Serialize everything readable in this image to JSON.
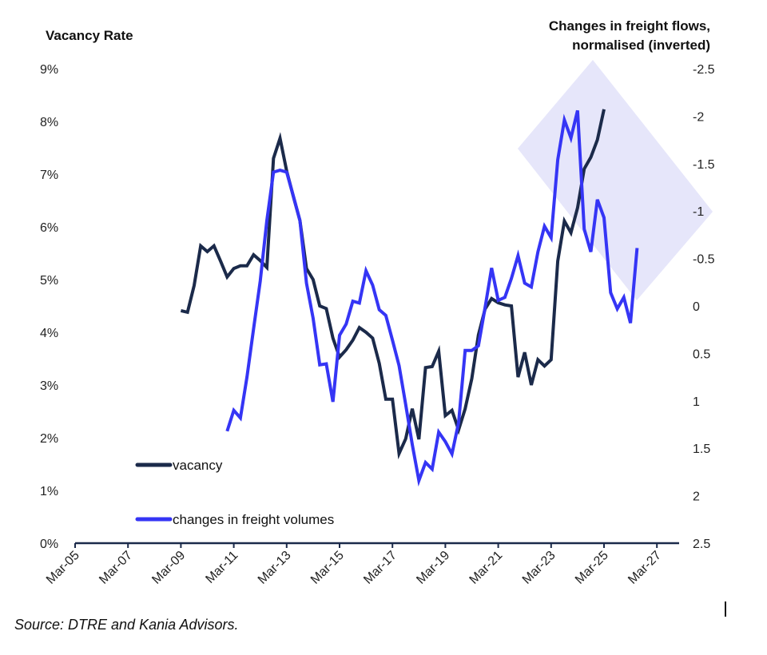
{
  "chart_data": {
    "type": "line",
    "title": "",
    "left_axis": {
      "label": "Vacancy Rate",
      "ticks": [
        "9%",
        "8%",
        "7%",
        "6%",
        "5%",
        "4%",
        "3%",
        "2%",
        "1%",
        "0%"
      ],
      "range": [
        0,
        9
      ]
    },
    "right_axis": {
      "label_line1": "Changes in freight flows,",
      "label_line2": "normalised (inverted)",
      "ticks": [
        "-2.5",
        "-2",
        "-1.5",
        "-1",
        "-0.5",
        "0",
        "0.5",
        "1",
        "1.5",
        "2",
        "2.5"
      ],
      "range": [
        -2.5,
        2.5
      ],
      "inverted": true
    },
    "x_axis": {
      "ticks": [
        "Mar-05",
        "Mar-07",
        "Mar-09",
        "Mar-11",
        "Mar-13",
        "Mar-15",
        "Mar-17",
        "Mar-19",
        "Mar-21",
        "Mar-23",
        "Mar-25",
        "Mar-27"
      ],
      "range": [
        2005.17,
        2028.0
      ]
    },
    "highlight": {
      "shape": "diamond",
      "color": "#e6e6fa",
      "region": "2021Q4-2027Q2"
    },
    "series": [
      {
        "name": "vacancy",
        "axis": "left",
        "color": "#1b2a4a",
        "x": [
          2009.17,
          2009.42,
          2009.67,
          2009.92,
          2010.17,
          2010.42,
          2010.67,
          2010.92,
          2011.17,
          2011.42,
          2011.67,
          2011.92,
          2012.17,
          2012.42,
          2012.67,
          2012.92,
          2013.17,
          2013.42,
          2013.67,
          2013.92,
          2014.17,
          2014.42,
          2014.67,
          2014.92,
          2015.17,
          2015.42,
          2015.67,
          2015.92,
          2016.17,
          2016.42,
          2016.67,
          2016.92,
          2017.17,
          2017.42,
          2017.67,
          2017.92,
          2018.17,
          2018.42,
          2018.67,
          2018.92,
          2019.17,
          2019.42,
          2019.67,
          2019.92,
          2020.17,
          2020.42,
          2020.67,
          2020.92,
          2021.17,
          2021.42,
          2021.67,
          2021.92,
          2022.17,
          2022.42,
          2022.67,
          2022.92,
          2023.17,
          2023.42,
          2023.67,
          2023.92,
          2024.17,
          2024.42,
          2024.67,
          2024.92,
          2025.17
        ],
        "values": [
          4.41,
          4.38,
          4.89,
          5.64,
          5.53,
          5.64,
          5.35,
          5.05,
          5.21,
          5.26,
          5.26,
          5.47,
          5.36,
          5.23,
          7.3,
          7.68,
          7.06,
          6.58,
          6.12,
          5.21,
          5.0,
          4.5,
          4.45,
          3.89,
          3.53,
          3.67,
          3.85,
          4.09,
          4.0,
          3.89,
          3.41,
          2.73,
          2.73,
          1.7,
          1.98,
          2.55,
          1.97,
          3.33,
          3.35,
          3.64,
          2.42,
          2.52,
          2.15,
          2.55,
          3.12,
          3.95,
          4.44,
          4.64,
          4.56,
          4.52,
          4.5,
          3.15,
          3.62,
          3.0,
          3.48,
          3.36,
          3.48,
          5.35,
          6.11,
          5.89,
          6.36,
          7.1,
          7.32,
          7.65,
          8.23
        ]
      },
      {
        "name": "changes in freight volumes",
        "axis": "right",
        "color": "#3535f5",
        "x": [
          2010.92,
          2011.17,
          2011.42,
          2011.67,
          2011.92,
          2012.17,
          2012.42,
          2012.67,
          2012.92,
          2013.17,
          2013.42,
          2013.67,
          2013.92,
          2014.17,
          2014.42,
          2014.67,
          2014.92,
          2015.17,
          2015.42,
          2015.67,
          2015.92,
          2016.17,
          2016.42,
          2016.67,
          2016.92,
          2017.17,
          2017.42,
          2017.67,
          2017.92,
          2018.17,
          2018.42,
          2018.67,
          2018.92,
          2019.17,
          2019.42,
          2019.67,
          2019.92,
          2020.17,
          2020.42,
          2020.67,
          2020.92,
          2021.17,
          2021.42,
          2021.67,
          2021.92,
          2022.17,
          2022.42,
          2022.67,
          2022.92,
          2023.17,
          2023.42,
          2023.67,
          2023.92,
          2024.17,
          2024.42,
          2024.67,
          2024.92,
          2025.17,
          2025.42,
          2025.67,
          2025.92,
          2026.17,
          2026.42
        ],
        "values": [
          1.32,
          1.1,
          1.18,
          0.75,
          0.24,
          -0.26,
          -0.9,
          -1.41,
          -1.43,
          -1.41,
          -1.16,
          -0.9,
          -0.24,
          0.13,
          0.62,
          0.61,
          1.01,
          0.31,
          0.19,
          -0.05,
          -0.03,
          -0.37,
          -0.22,
          0.04,
          0.1,
          0.36,
          0.63,
          1.04,
          1.46,
          1.84,
          1.65,
          1.72,
          1.33,
          1.43,
          1.56,
          1.23,
          0.47,
          0.47,
          0.42,
          0.02,
          -0.4,
          -0.06,
          -0.09,
          -0.29,
          -0.53,
          -0.24,
          -0.2,
          -0.57,
          -0.84,
          -0.72,
          -1.54,
          -1.96,
          -1.77,
          -2.06,
          -0.81,
          -0.57,
          -1.12,
          -0.93,
          -0.14,
          0.03,
          -0.09,
          0.18,
          -0.61
        ]
      }
    ],
    "legend": {
      "position": "bottom-left",
      "entries": [
        "vacancy",
        "changes in freight volumes"
      ]
    }
  },
  "source": "Source: DTRE and Kania Advisors."
}
